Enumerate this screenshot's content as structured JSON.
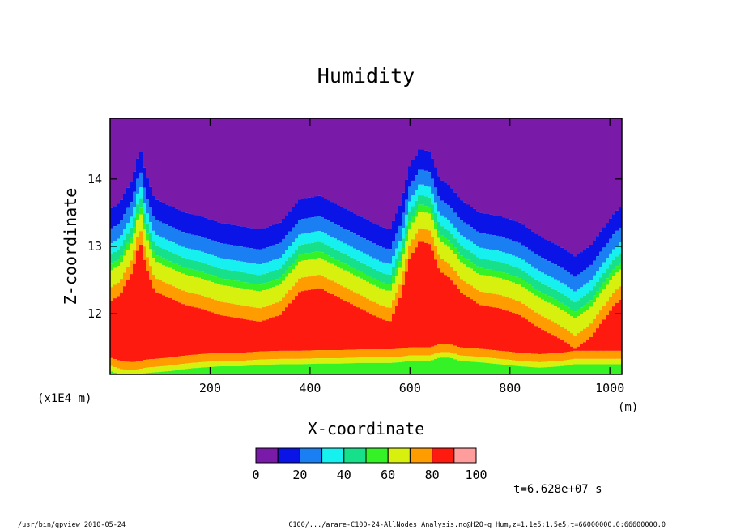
{
  "chart_data": {
    "type": "heatmap",
    "title": "Humidity",
    "xlabel": "X-coordinate",
    "ylabel": "Z-coordinate",
    "x_units": "(m)",
    "y_scale_note": "(x1E4 m)",
    "xlim": [
      0,
      1024
    ],
    "ylim": [
      11.1,
      14.9
    ],
    "x_ticks": [
      200,
      400,
      600,
      800,
      1000
    ],
    "y_ticks": [
      12,
      13,
      14
    ],
    "colorbar": {
      "levels": [
        0,
        10,
        20,
        30,
        40,
        50,
        60,
        70,
        80,
        90,
        100
      ],
      "tick_labels": [
        "0",
        "20",
        "40",
        "60",
        "80",
        "100"
      ],
      "colors": [
        "#7a1aa8",
        "#0a14e6",
        "#1a7ff2",
        "#16f0ee",
        "#16e08a",
        "#34f226",
        "#d8f00e",
        "#ff9c00",
        "#ff1a10",
        "#ff9c9c",
        "#ffffff"
      ]
    },
    "profiles": {
      "x": [
        0,
        20,
        45,
        60,
        70,
        90,
        120,
        150,
        180,
        220,
        260,
        300,
        340,
        380,
        420,
        460,
        500,
        540,
        560,
        580,
        600,
        620,
        640,
        660,
        680,
        700,
        740,
        780,
        820,
        860,
        900,
        930,
        960,
        990,
        1010,
        1024
      ],
      "top_of_moist_layer_z": [
        13.55,
        13.65,
        14.0,
        14.45,
        14.1,
        13.7,
        13.6,
        13.5,
        13.45,
        13.35,
        13.3,
        13.25,
        13.35,
        13.7,
        13.75,
        13.6,
        13.45,
        13.3,
        13.25,
        13.6,
        14.2,
        14.45,
        14.4,
        14.0,
        13.9,
        13.7,
        13.5,
        13.45,
        13.35,
        13.15,
        13.0,
        12.85,
        13.0,
        13.3,
        13.5,
        13.6
      ],
      "base_of_saturated_layer_z": [
        11.35,
        11.3,
        11.28,
        11.3,
        11.32,
        11.33,
        11.35,
        11.38,
        11.4,
        11.42,
        11.42,
        11.44,
        11.45,
        11.45,
        11.46,
        11.46,
        11.47,
        11.47,
        11.47,
        11.48,
        11.5,
        11.5,
        11.5,
        11.55,
        11.55,
        11.5,
        11.48,
        11.45,
        11.42,
        11.4,
        11.42,
        11.45,
        11.45,
        11.45,
        11.45,
        11.45
      ]
    },
    "grid": false,
    "legend": "colorbar below plot"
  },
  "annotations": {
    "time": "t=6.628e+07 s",
    "footer_left": "/usr/bin/gpview   2010-05-24",
    "footer_right": "C100/.../arare-C100-24-AllNodes_Analysis.nc@H2O-g_Hum,z=1.1e5:1.5e5,t=66000000.0:66600000.0"
  }
}
